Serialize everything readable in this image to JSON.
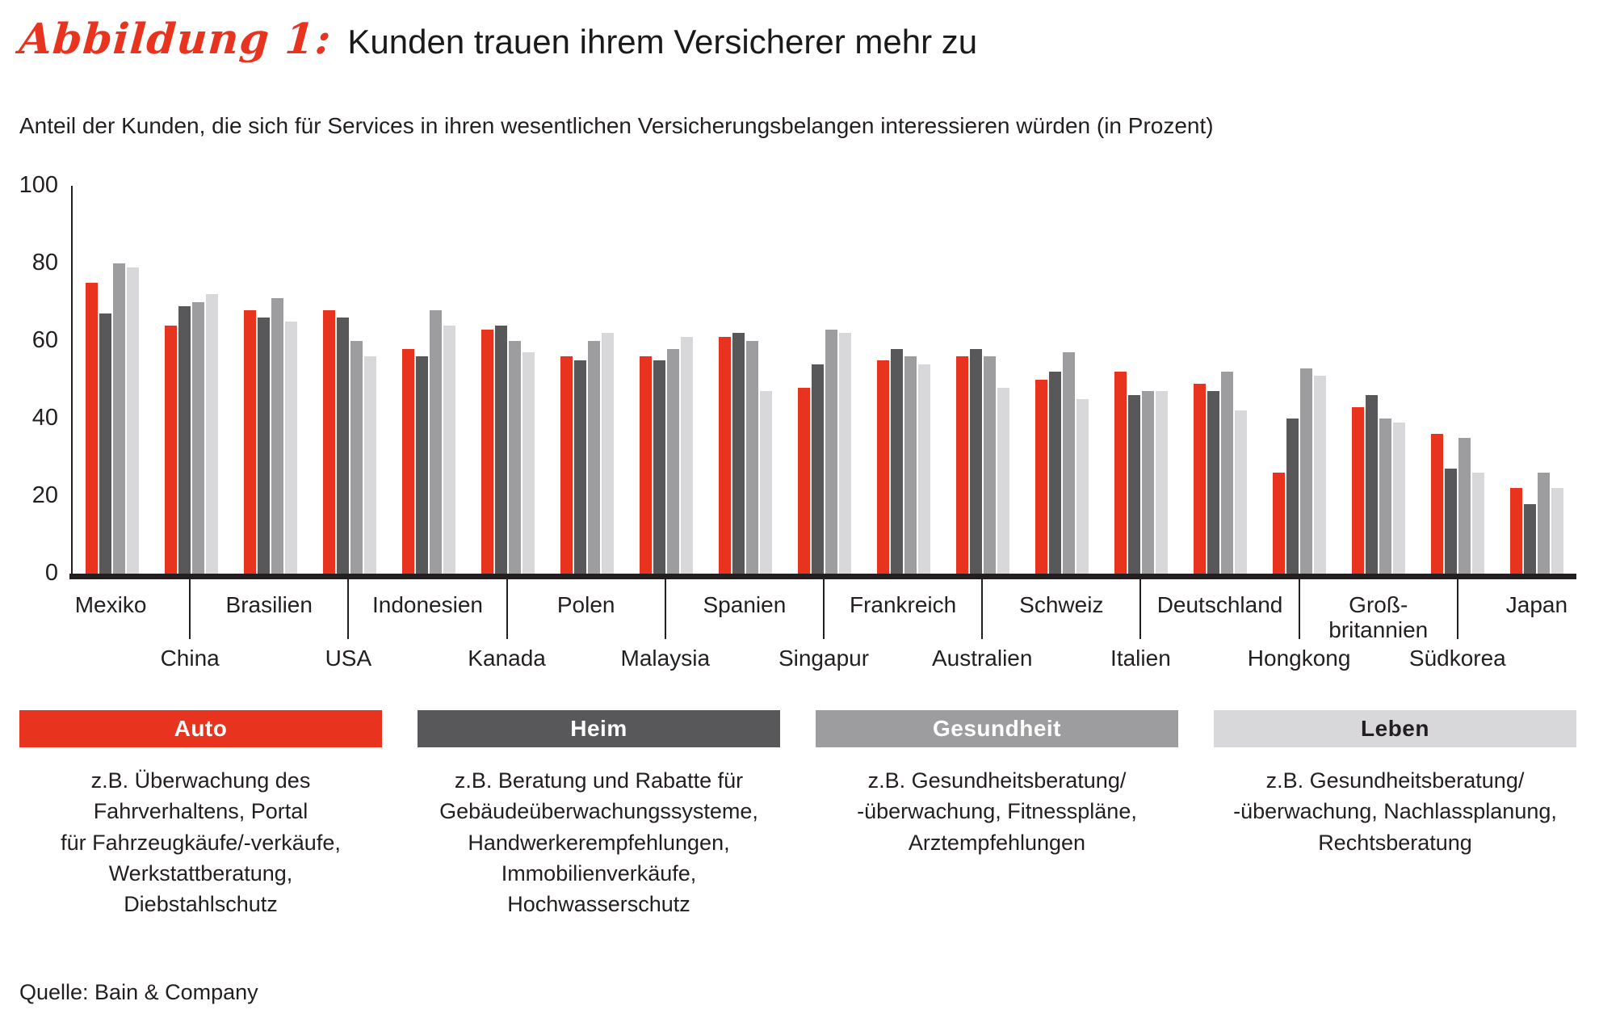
{
  "title": {
    "figure_label": "Abbildung 1:",
    "text": "Kunden trauen ihrem Versicherer mehr zu"
  },
  "subtitle": "Anteil der Kunden, die sich für Services in ihren wesentlichen Versicherungsbelangen interessieren würden (in Prozent)",
  "source": "Quelle: Bain & Company",
  "colors": {
    "accent_red": "#e8331e",
    "dark_gray": "#58585a",
    "medium_gray": "#9d9d9f",
    "light_gray": "#d8d8da",
    "axis_black": "#231f20"
  },
  "chart_data": {
    "type": "bar",
    "title": "Kunden trauen ihrem Versicherer mehr zu",
    "xlabel": "",
    "ylabel": "",
    "ylim": [
      0,
      100
    ],
    "yticks": [
      0,
      20,
      40,
      60,
      80,
      100
    ],
    "grid": false,
    "legend_position": "bottom",
    "categories": [
      "Mexiko",
      "China",
      "Brasilien",
      "USA",
      "Indonesien",
      "Kanada",
      "Polen",
      "Malaysia",
      "Spanien",
      "Singapur",
      "Frankreich",
      "Australien",
      "Schweiz",
      "Italien",
      "Deutschland",
      "Hongkong",
      "Groß-\nbritannien",
      "Südkorea",
      "Japan"
    ],
    "series": [
      {
        "name": "Auto",
        "color": "#e8331e",
        "values": [
          75,
          64,
          68,
          68,
          58,
          63,
          56,
          56,
          61,
          48,
          55,
          56,
          50,
          52,
          49,
          26,
          43,
          36,
          22
        ]
      },
      {
        "name": "Heim",
        "color": "#58585a",
        "values": [
          67,
          69,
          66,
          66,
          56,
          64,
          55,
          55,
          62,
          54,
          58,
          58,
          52,
          46,
          47,
          40,
          46,
          27,
          18
        ]
      },
      {
        "name": "Gesundheit",
        "color": "#9d9d9f",
        "values": [
          80,
          70,
          71,
          60,
          68,
          60,
          60,
          58,
          60,
          63,
          56,
          56,
          57,
          47,
          52,
          53,
          40,
          35,
          26
        ]
      },
      {
        "name": "Leben",
        "color": "#d8d8da",
        "values": [
          79,
          72,
          65,
          56,
          64,
          57,
          62,
          61,
          47,
          62,
          54,
          48,
          45,
          47,
          42,
          51,
          39,
          26,
          22
        ]
      }
    ]
  },
  "legend": [
    {
      "label": "Auto",
      "color": "#e8331e",
      "text_color": "#ffffff",
      "description": "z.B. Überwachung des\nFahrverhaltens, Portal\nfür Fahrzeugkäufe/-verkäufe,\nWerkstattberatung,\nDiebstahlschutz"
    },
    {
      "label": "Heim",
      "color": "#58585a",
      "text_color": "#ffffff",
      "description": "z.B. Beratung und Rabatte für\nGebäudeüberwachungssysteme,\nHandwerkerempfehlungen,\nImmobilienverkäufe,\nHochwasserschutz"
    },
    {
      "label": "Gesundheit",
      "color": "#9d9d9f",
      "text_color": "#ffffff",
      "description": "z.B. Gesundheitsberatung/\n-überwachung, Fitnesspläne,\nArztempfehlungen"
    },
    {
      "label": "Leben",
      "color": "#d8d8da",
      "text_color": "#231f20",
      "description": "z.B. Gesundheitsberatung/\n-überwachung, Nachlassplanung,\nRechtsberatung"
    }
  ]
}
